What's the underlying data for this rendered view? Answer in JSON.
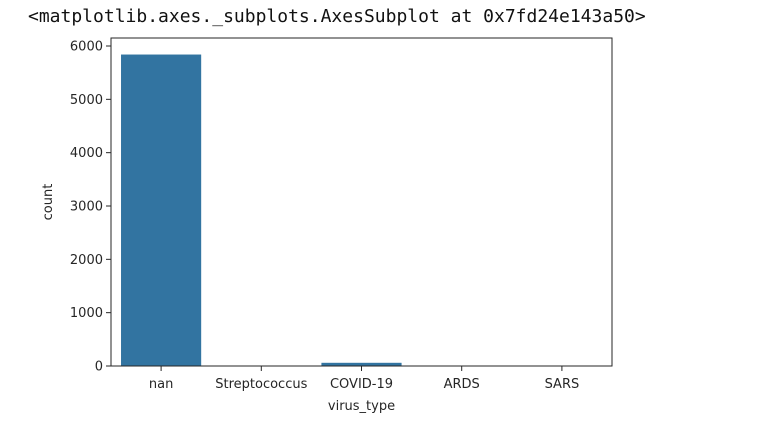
{
  "output_text": "<matplotlib.axes._subplots.AxesSubplot at 0x7fd24e143a50>",
  "chart_data": {
    "type": "bar",
    "categories": [
      "nan",
      "Streptococcus",
      "COVID-19",
      "ARDS",
      "SARS"
    ],
    "values": [
      5840,
      4,
      60,
      4,
      4
    ],
    "xlabel": "virus_type",
    "ylabel": "count",
    "ylim": [
      0,
      6150
    ],
    "yticks": [
      0,
      1000,
      2000,
      3000,
      4000,
      5000,
      6000
    ],
    "grid": false,
    "bar_colors": [
      "#3274a1",
      "#e1812c",
      "#3a923a",
      "#c03d3e",
      "#9372b2"
    ]
  }
}
